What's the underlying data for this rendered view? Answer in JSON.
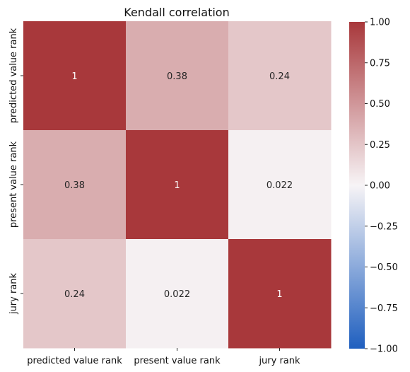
{
  "chart_data": {
    "type": "heatmap",
    "title": "Kendall correlation",
    "x_labels": [
      "predicted value rank",
      "present value rank",
      "jury rank"
    ],
    "y_labels": [
      "predicted value rank",
      "present value rank",
      "jury rank"
    ],
    "values": [
      [
        1,
        0.38,
        0.24
      ],
      [
        0.38,
        1,
        0.022
      ],
      [
        0.24,
        0.022,
        1
      ]
    ],
    "annotations": [
      [
        "1",
        "0.38",
        "0.24"
      ],
      [
        "0.38",
        "1",
        "0.022"
      ],
      [
        "0.24",
        "0.022",
        "1"
      ]
    ],
    "colormap": {
      "name": "vlag-like diverging",
      "min_color": "#1f5fbf",
      "mid_color": "#f7f4f6",
      "max_color": "#a8383b"
    },
    "colorbar": {
      "vmin": -1.0,
      "vmax": 1.0,
      "ticks": [
        1.0,
        0.75,
        0.5,
        0.25,
        0.0,
        -0.25,
        -0.5,
        -0.75,
        -1.0
      ],
      "tick_labels": [
        "1.00",
        "0.75",
        "0.50",
        "0.25",
        "0.00",
        "−0.25",
        "−0.50",
        "−0.75",
        "−1.00"
      ]
    }
  }
}
